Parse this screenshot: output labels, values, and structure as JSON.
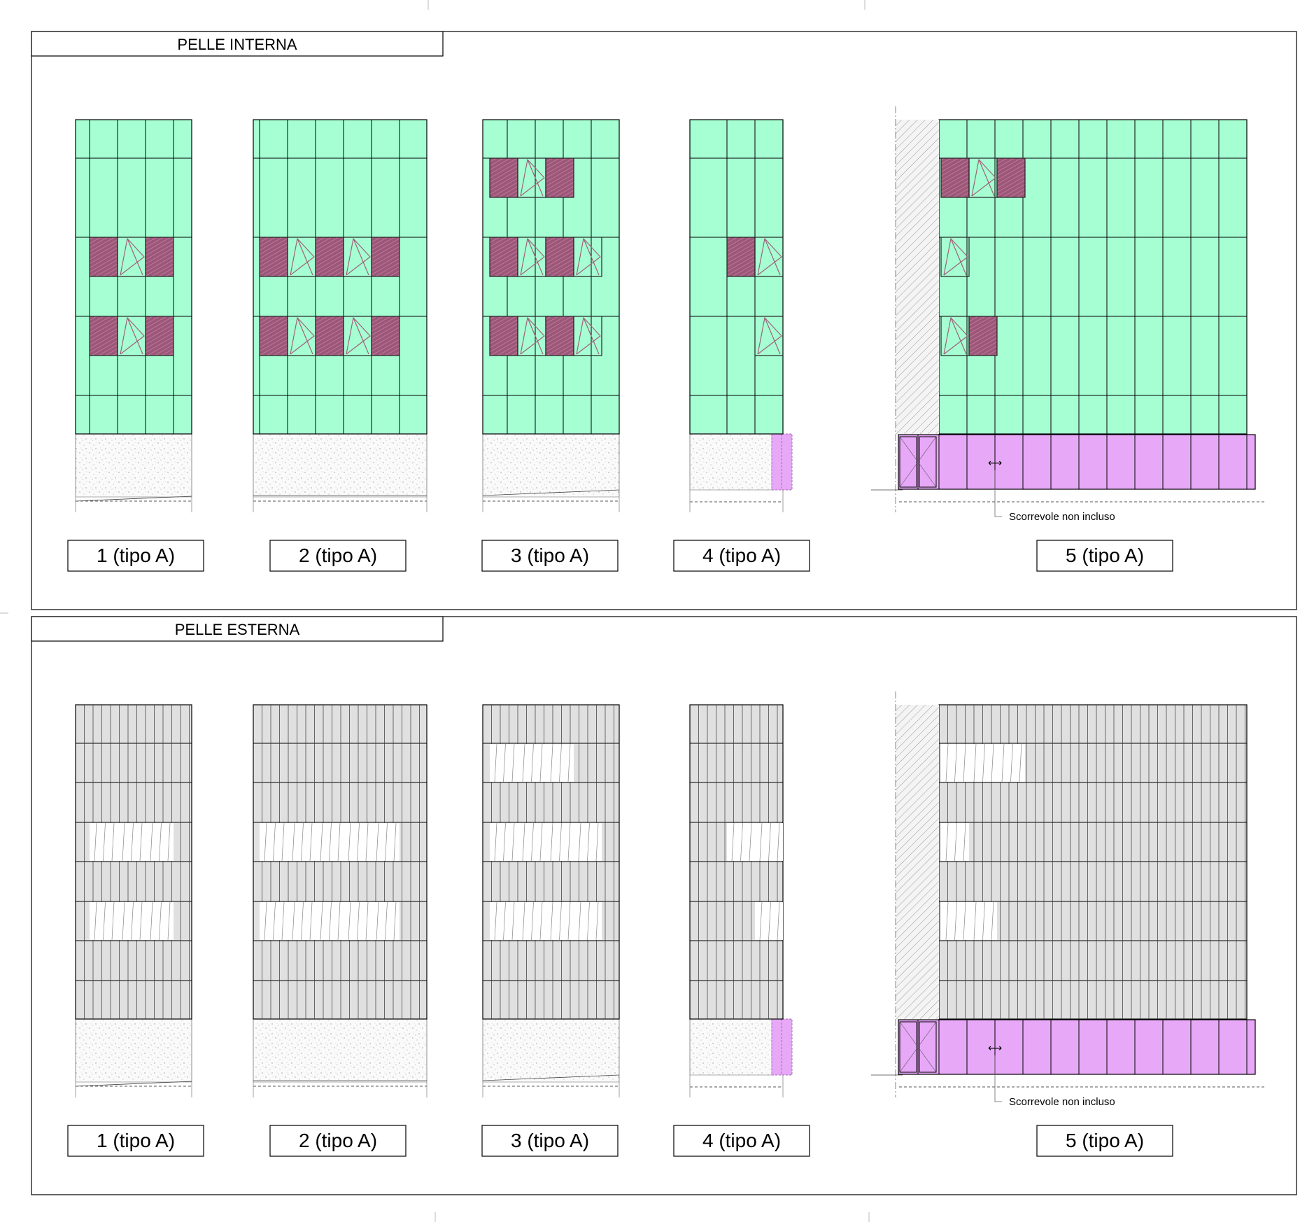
{
  "sections": [
    {
      "id": "interna",
      "title": "PELLE INTERNA",
      "skin": "inner",
      "labels": [
        "1 (tipo A)",
        "2 (tipo A)",
        "3 (tipo A)",
        "4 (tipo A)",
        "5 (tipo A)"
      ],
      "note": "Scorrevole non incluso",
      "arrow_symbol": "⟷"
    },
    {
      "id": "esterna",
      "title": "PELLE ESTERNA",
      "skin": "outer",
      "labels": [
        "1 (tipo A)",
        "2 (tipo A)",
        "3 (tipo A)",
        "4 (tipo A)",
        "5 (tipo A)"
      ],
      "note": "Scorrevole non incluso",
      "arrow_symbol": "⟷"
    }
  ],
  "colors": {
    "glass_green": "#a6ffd3",
    "cladding_grey": "#e0e0e0",
    "window_purple": "#a0607a",
    "shop_pink": "#e8a8f8",
    "ground_fill": "#ffffff",
    "outline": "#000000"
  }
}
